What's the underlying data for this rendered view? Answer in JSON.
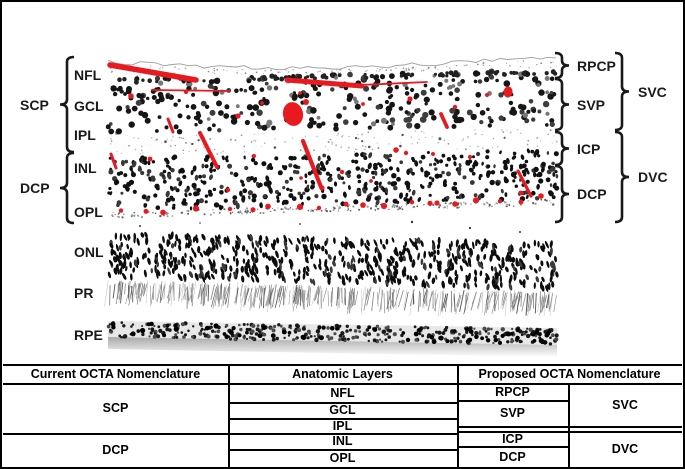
{
  "figure": {
    "left_annotations": {
      "plexus_groups": [
        {
          "label": "SCP",
          "layers": [
            "NFL",
            "GCL",
            "IPL"
          ]
        },
        {
          "label": "DCP",
          "layers": [
            "INL",
            "OPL"
          ]
        }
      ],
      "ungrouped_layers": [
        "ONL",
        "PR",
        "RPE"
      ]
    },
    "right_annotations": {
      "complex_groups": [
        {
          "label": "SVC",
          "plexuses": [
            "RPCP",
            "SVP"
          ]
        },
        {
          "label": "DVC",
          "plexuses": [
            "ICP",
            "DCP"
          ]
        }
      ]
    },
    "colors": {
      "vessel_red": "#e8191f",
      "nuclei_dark": "#151515",
      "annotation_black": "#1a1a1a"
    }
  },
  "table": {
    "headers": [
      "Current OCTA Nomenclature",
      "Anatomic Layers",
      "Proposed OCTA Nomenclature"
    ],
    "current_nomenclature": [
      {
        "label": "SCP",
        "anatomic_span": [
          "NFL",
          "GCL",
          "IPL"
        ]
      },
      {
        "label": "DCP",
        "anatomic_span": [
          "INL",
          "OPL"
        ]
      }
    ],
    "anatomic_layers": [
      "NFL",
      "GCL",
      "IPL",
      "INL",
      "OPL"
    ],
    "proposed_nomenclature": [
      {
        "complex": "SVC",
        "plexuses": [
          "RPCP",
          "SVP"
        ]
      },
      {
        "complex": "DVC",
        "plexuses": [
          "ICP",
          "DCP"
        ]
      }
    ]
  }
}
